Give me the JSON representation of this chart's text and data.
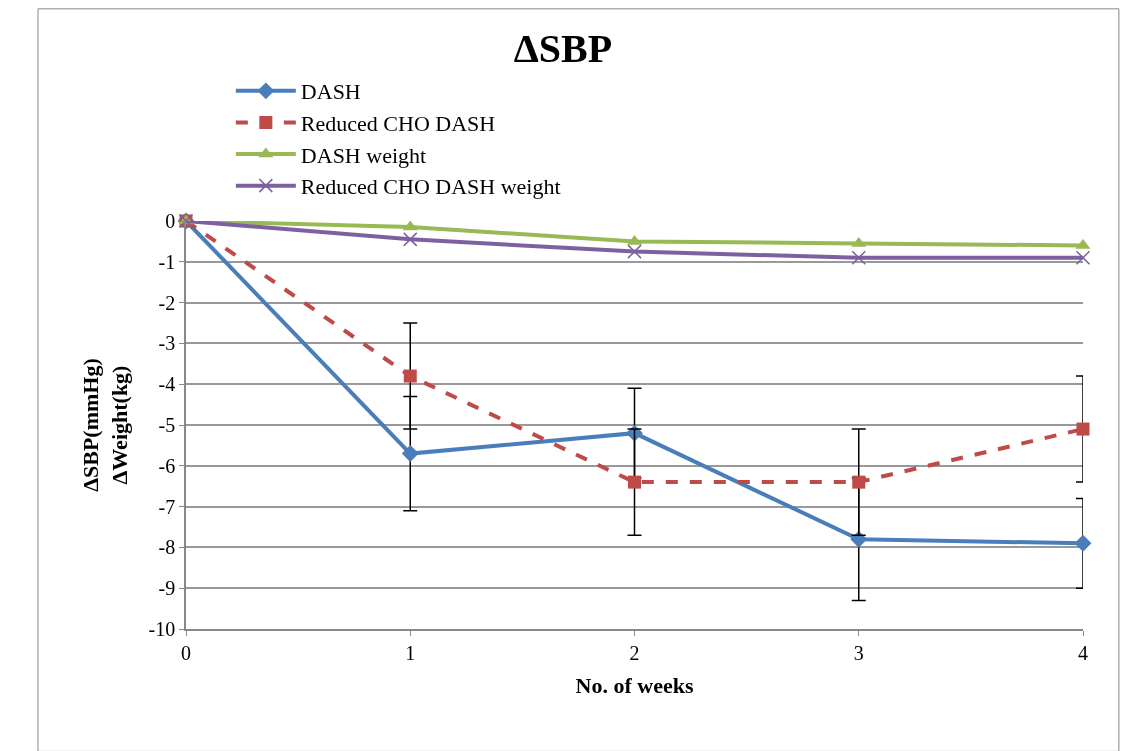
{
  "chart_data": {
    "type": "line",
    "title": "ΔSBP",
    "xlabel": "No. of weeks",
    "ylabel": "ΔSBP(mmHg)\nΔWeight(kg)",
    "x": [
      0,
      1,
      2,
      3,
      4
    ],
    "xlim": [
      0,
      4
    ],
    "xticks": [
      0,
      1,
      2,
      3,
      4
    ],
    "ylim": [
      -10,
      0
    ],
    "yticks": [
      -10,
      -9,
      -8,
      -7,
      -6,
      -5,
      -4,
      -3,
      -2,
      -1,
      0
    ],
    "grid": "y",
    "legend": "top",
    "series": [
      {
        "name": "DASH",
        "color": "#4a7ebb",
        "marker": "diamond",
        "line_style": "solid",
        "values": [
          0,
          -5.7,
          -5.2,
          -7.8,
          -7.9
        ],
        "errors": [
          null,
          1.4,
          1.1,
          1.5,
          1.1
        ]
      },
      {
        "name": "Reduced CHO DASH",
        "color": "#be4b48",
        "marker": "square",
        "line_style": "dashed",
        "values": [
          0,
          -3.8,
          -6.4,
          -6.4,
          -5.1
        ],
        "errors": [
          null,
          1.3,
          1.3,
          1.3,
          1.3
        ]
      },
      {
        "name": "DASH weight",
        "color": "#98b954",
        "marker": "triangle",
        "line_style": "solid",
        "values": [
          0,
          -0.15,
          -0.5,
          -0.55,
          -0.6
        ]
      },
      {
        "name": "Reduced CHO DASH weight",
        "color": "#7d60a0",
        "marker": "cross",
        "line_style": "solid",
        "values": [
          0,
          -0.45,
          -0.75,
          -0.9,
          -0.9
        ]
      }
    ]
  }
}
